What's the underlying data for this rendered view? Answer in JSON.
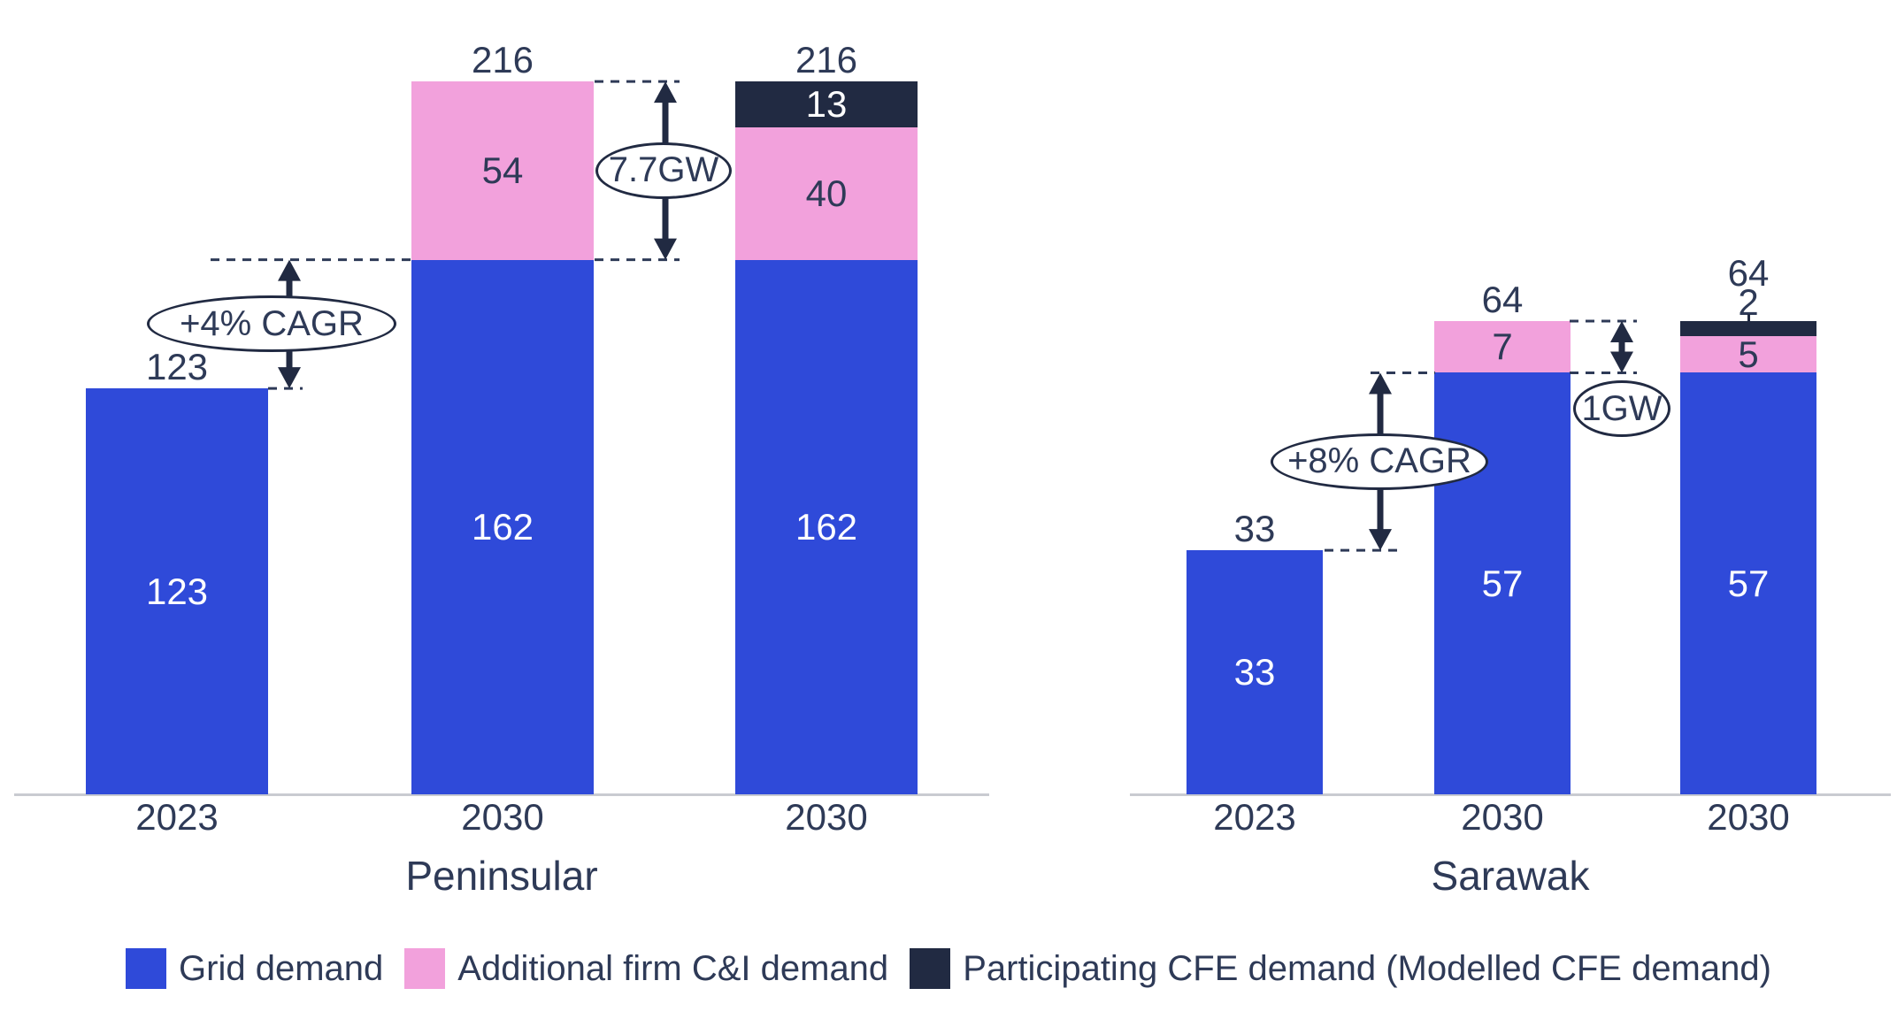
{
  "chart_data": {
    "type": "bar",
    "variant": "grouped-stacked-bars",
    "grid": false,
    "legend_position": "bottom",
    "groups": [
      {
        "title": "Peninsular",
        "categories": [
          "2023",
          "2030",
          "2030"
        ],
        "series": [
          {
            "key": "grid",
            "name": "Grid demand",
            "values": [
              123,
              162,
              162
            ]
          },
          {
            "key": "ci",
            "name": "Additional firm C&I demand",
            "values": [
              0,
              54,
              40
            ]
          },
          {
            "key": "cfe",
            "name": "Participating CFE demand (Modelled CFE demand)",
            "values": [
              0,
              0,
              13
            ]
          }
        ],
        "totals": [
          123,
          216,
          216
        ],
        "ylim": [
          0,
          216
        ]
      },
      {
        "title": "Sarawak",
        "categories": [
          "2023",
          "2030",
          "2030"
        ],
        "series": [
          {
            "key": "grid",
            "name": "Grid demand",
            "values": [
              33,
              57,
              57
            ]
          },
          {
            "key": "ci",
            "name": "Additional firm C&I demand",
            "values": [
              0,
              7,
              5
            ]
          },
          {
            "key": "cfe",
            "name": "Participating CFE demand (Modelled CFE demand)",
            "values": [
              0,
              0,
              2
            ]
          }
        ],
        "totals": [
          33,
          64,
          64
        ],
        "ylim": [
          0,
          64
        ]
      }
    ],
    "annotations": [
      {
        "label": "+4% CAGR",
        "group": "Peninsular",
        "from_value": 123,
        "to_value": 162,
        "style": "double-arrow-ellipse"
      },
      {
        "label": "7.7GW",
        "group": "Peninsular",
        "from_value": 162,
        "to_value": 216,
        "style": "double-arrow-ellipse"
      },
      {
        "label": "+8% CAGR",
        "group": "Sarawak",
        "from_value": 33,
        "to_value": 57,
        "style": "double-arrow-ellipse"
      },
      {
        "label": "1GW",
        "group": "Sarawak",
        "from_value": 57,
        "to_value": 64,
        "style": "double-arrow-ellipse-below"
      }
    ],
    "legend": {
      "items": [
        {
          "key": "grid",
          "label": "Grid demand",
          "color": "#2F4AD9"
        },
        {
          "key": "ci",
          "label": "Additional firm C&I demand",
          "color": "#F2A1DC"
        },
        {
          "key": "cfe",
          "label": "Participating CFE demand (Modelled CFE demand)",
          "color": "#212A42"
        }
      ]
    }
  },
  "colors": {
    "grid_demand": "#2F4AD9",
    "ci_demand": "#F2A1DC",
    "cfe_demand": "#212A42",
    "text": "#2E3A57",
    "axis": "#C9CBD1",
    "background": "#FFFFFF"
  }
}
